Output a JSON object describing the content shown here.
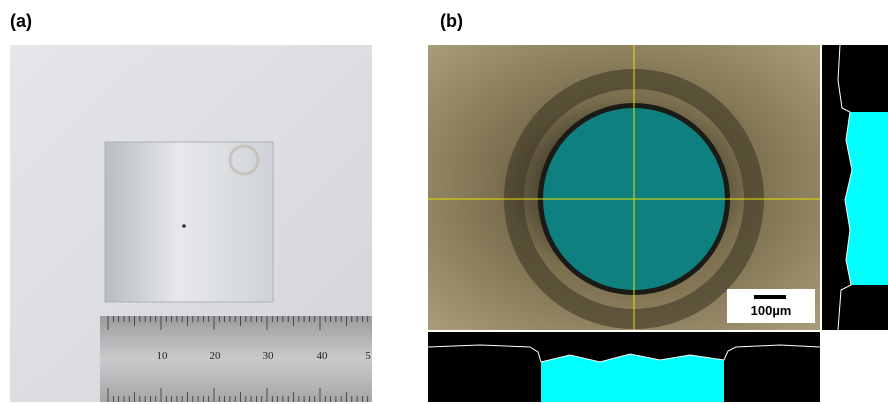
{
  "panels": [
    {
      "label": "(a)",
      "ruler_labels": [
        "10",
        "20",
        "30",
        "40",
        "5"
      ]
    },
    {
      "label": "(b)",
      "scale_bar": "100µm"
    }
  ]
}
